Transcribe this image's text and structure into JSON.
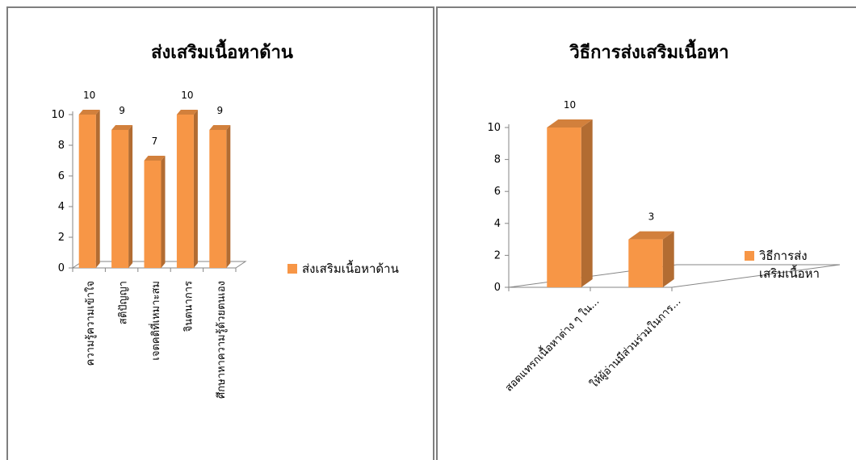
{
  "chart_data": [
    {
      "type": "bar",
      "title": "ส่งเสริมเนื้อหาด้าน",
      "categories": [
        "ความรู้ความเข้าใจ",
        "สติปัญญา",
        "เจตคติที่เหมาะสม",
        "จินตนาการ",
        "ศึกษาหาความรู้ด้วยตนเอง"
      ],
      "series": [
        {
          "name": "ส่งเสริมเนื้อหาด้าน",
          "values": [
            10,
            9,
            7,
            10,
            9
          ]
        }
      ],
      "y_ticks": [
        "0",
        "2",
        "4",
        "6",
        "8",
        "10"
      ],
      "ylim": [
        0,
        10
      ],
      "legend": "right",
      "color": "#f79646",
      "grid": false
    },
    {
      "type": "bar",
      "title": "วิธีการส่งเสริมเนื้อหา",
      "categories": [
        "สอดแทรกเนื้อหาต่าง ๆ ใน...",
        "ให้ผู้อ่านมีส่วนร่วมในการ..."
      ],
      "series": [
        {
          "name": "วิธีการส่งเสริมเนื้อหา",
          "values": [
            10,
            3
          ]
        }
      ],
      "y_ticks": [
        "0",
        "2",
        "4",
        "6",
        "8",
        "10"
      ],
      "ylim": [
        0,
        10
      ],
      "legend": "right",
      "color": "#f79646",
      "grid": false
    }
  ]
}
